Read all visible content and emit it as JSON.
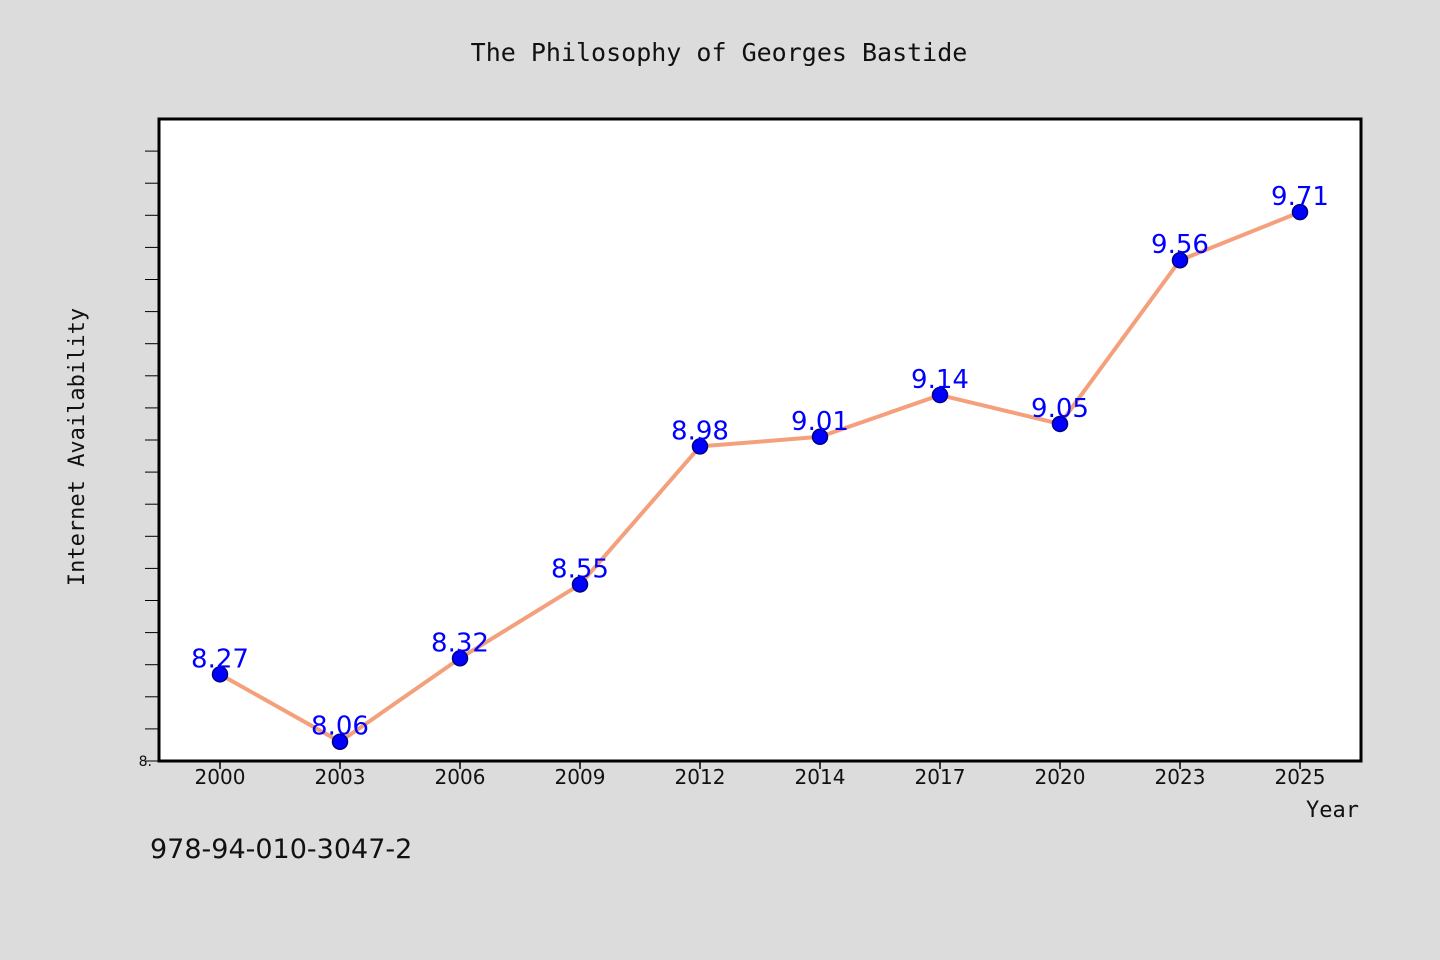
{
  "chart_data": {
    "type": "line",
    "title": "The Philosophy of Georges Bastide",
    "xlabel": "Year",
    "ylabel": "Internet Availability",
    "categories": [
      "2000",
      "2003",
      "2006",
      "2009",
      "2012",
      "2014",
      "2017",
      "2020",
      "2023",
      "2025"
    ],
    "series": [
      {
        "values": [
          8.27,
          8.06,
          8.32,
          8.55,
          8.98,
          9.01,
          9.14,
          9.05,
          9.56,
          9.71
        ]
      }
    ],
    "data_labels": [
      "8.27",
      "8.06",
      "8.32",
      "8.55",
      "8.98",
      "9.01",
      "9.14",
      "9.05",
      "9.56",
      "9.71"
    ],
    "y_tick_label": "8.",
    "ylim": [
      8.0,
      10.0
    ],
    "y_minor_tick_step": 0.1,
    "grid": false,
    "legend": "none",
    "colors": {
      "background": "#dcdcdc",
      "plot_background": "#ffffff",
      "line": "#f4a07c",
      "marker": "#0000ff",
      "marker_edge": "#000080",
      "data_label": "#0000ff",
      "text": "#111111"
    }
  },
  "footer": {
    "identifier": "978-94-010-3047-2"
  }
}
